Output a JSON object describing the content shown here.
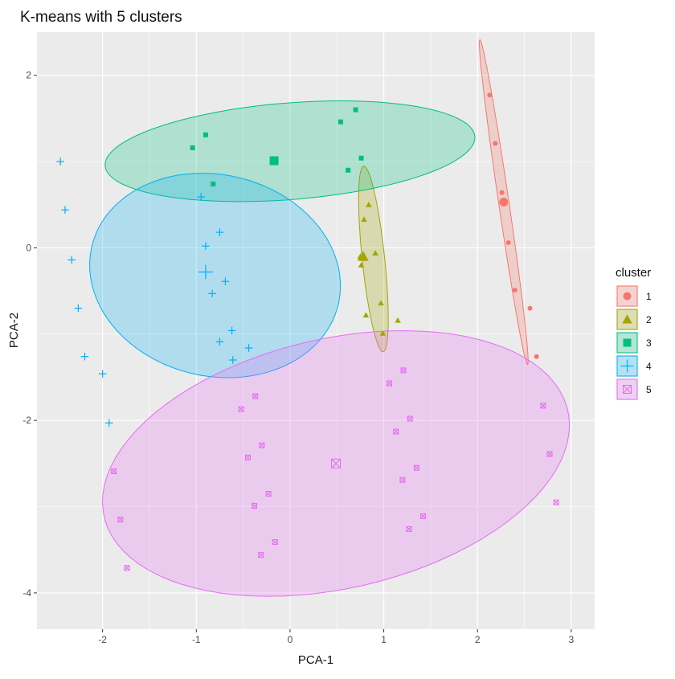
{
  "chart_data": {
    "type": "scatter",
    "title": "K-means with 5 clusters",
    "xlabel": "PCA-1",
    "ylabel": "PCA-2",
    "xlim": [
      -2.7,
      3.25
    ],
    "ylim": [
      -4.42,
      2.5
    ],
    "xticks": [
      -2,
      -1,
      0,
      1,
      2,
      3
    ],
    "yticks": [
      -4,
      -2,
      0,
      2
    ],
    "grid": true,
    "legend": {
      "title": "cluster",
      "position": "right"
    },
    "series": [
      {
        "name": "1",
        "color": "#F8766D",
        "shape": "circle",
        "points": [
          [
            2.13,
            1.77
          ],
          [
            2.19,
            1.21
          ],
          [
            2.26,
            0.64
          ],
          [
            2.33,
            0.06
          ],
          [
            2.4,
            -0.49
          ],
          [
            2.56,
            -0.7
          ],
          [
            2.63,
            -1.26
          ]
        ],
        "center": [
          2.28,
          0.53
        ],
        "ellipse": {
          "cx": 2.28,
          "cy": 0.53,
          "rx": 1.9,
          "ry": 0.055,
          "angle_deg": -82.3
        }
      },
      {
        "name": "2",
        "color": "#A3A500",
        "shape": "triangle",
        "points": [
          [
            0.84,
            0.5
          ],
          [
            0.79,
            0.33
          ],
          [
            0.75,
            -0.1
          ],
          [
            0.91,
            -0.06
          ],
          [
            0.76,
            -0.2
          ],
          [
            0.97,
            -0.64
          ],
          [
            0.81,
            -0.78
          ],
          [
            0.99,
            -0.99
          ],
          [
            1.15,
            -0.84
          ]
        ],
        "center": [
          0.78,
          -0.1
        ],
        "ellipse": {
          "cx": 0.89,
          "cy": -0.13,
          "rx": 1.08,
          "ry": 0.12,
          "angle_deg": -84.5
        }
      },
      {
        "name": "3",
        "color": "#00BF7D",
        "shape": "square",
        "points": [
          [
            0.7,
            1.6
          ],
          [
            0.54,
            1.46
          ],
          [
            -0.9,
            1.31
          ],
          [
            -1.04,
            1.16
          ],
          [
            0.76,
            1.04
          ],
          [
            0.62,
            0.9
          ],
          [
            -0.82,
            0.74
          ]
        ],
        "center": [
          -0.17,
          1.01
        ],
        "ellipse": {
          "cx": 0.0,
          "cy": 1.12,
          "rx": 1.98,
          "ry": 0.56,
          "angle_deg": 5.0
        }
      },
      {
        "name": "4",
        "color": "#00B0F6",
        "shape": "plus",
        "points": [
          [
            -2.45,
            1.0
          ],
          [
            -2.4,
            0.44
          ],
          [
            -2.33,
            -0.14
          ],
          [
            -2.26,
            -0.7
          ],
          [
            -2.19,
            -1.26
          ],
          [
            -2.0,
            -1.46
          ],
          [
            -1.93,
            -2.03
          ],
          [
            -0.95,
            0.59
          ],
          [
            -0.9,
            0.02
          ],
          [
            -0.83,
            -0.53
          ],
          [
            -0.75,
            0.18
          ],
          [
            -0.69,
            -0.39
          ],
          [
            -0.62,
            -0.96
          ],
          [
            -0.75,
            -1.09
          ],
          [
            -0.61,
            -1.3
          ],
          [
            -0.44,
            -1.16
          ]
        ],
        "center": [
          -0.9,
          -0.28
        ],
        "ellipse": {
          "cx": -0.8,
          "cy": -0.32,
          "rx": 1.36,
          "ry": 1.16,
          "angle_deg": -20
        }
      },
      {
        "name": "5",
        "color": "#E76BF3",
        "shape": "square-x",
        "points": [
          [
            1.21,
            -1.42
          ],
          [
            1.06,
            -1.57
          ],
          [
            -0.37,
            -1.72
          ],
          [
            -0.52,
            -1.87
          ],
          [
            1.28,
            -1.98
          ],
          [
            1.13,
            -2.13
          ],
          [
            2.7,
            -1.83
          ],
          [
            -0.3,
            -2.29
          ],
          [
            -0.45,
            -2.43
          ],
          [
            1.35,
            -2.55
          ],
          [
            -1.88,
            -2.59
          ],
          [
            1.2,
            -2.69
          ],
          [
            2.77,
            -2.39
          ],
          [
            -0.23,
            -2.85
          ],
          [
            -0.38,
            -2.99
          ],
          [
            2.84,
            -2.95
          ],
          [
            1.42,
            -3.11
          ],
          [
            -1.81,
            -3.15
          ],
          [
            1.27,
            -3.26
          ],
          [
            -0.16,
            -3.41
          ],
          [
            -0.31,
            -3.56
          ],
          [
            -1.74,
            -3.71
          ]
        ],
        "center": [
          0.49,
          -2.5
        ],
        "ellipse": {
          "cx": 0.49,
          "cy": -2.5,
          "rx": 2.55,
          "ry": 1.44,
          "angle_deg": 15
        }
      }
    ]
  }
}
